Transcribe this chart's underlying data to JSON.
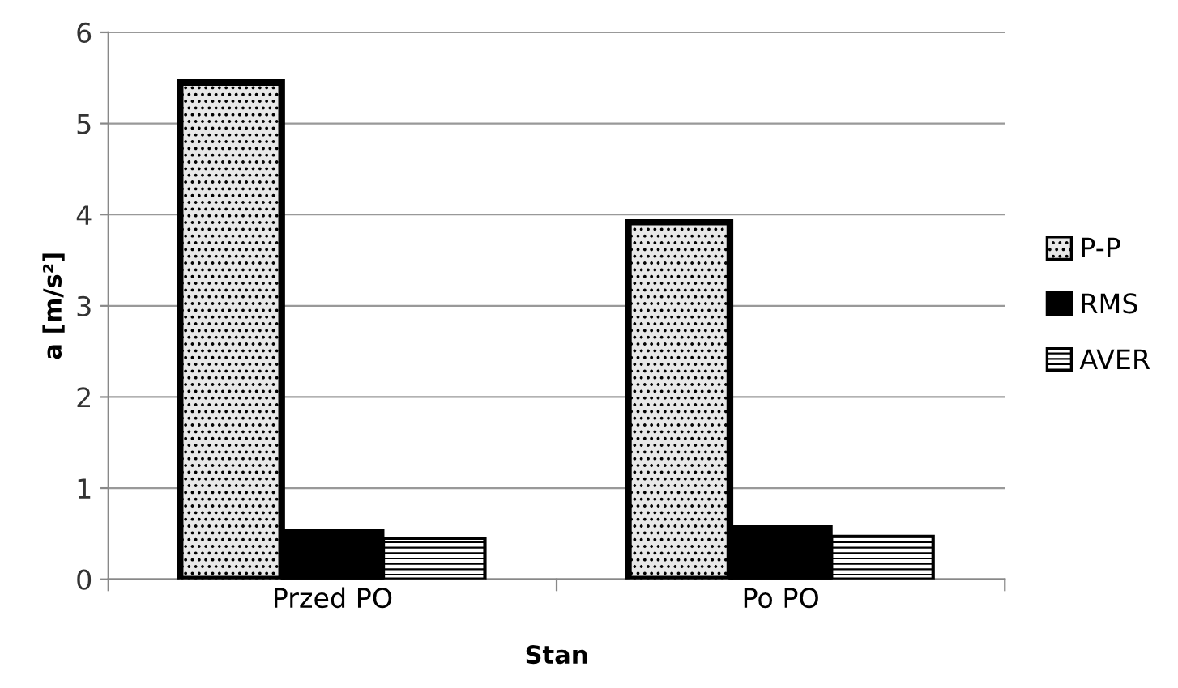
{
  "chart_data": {
    "type": "bar",
    "xlabel": "Stan",
    "ylabel": "a [m/s²]",
    "categories": [
      "Przed PO",
      "Po PO"
    ],
    "series": [
      {
        "name": "P-P",
        "color": "#e8e8e8",
        "values": [
          5.45,
          3.92
        ]
      },
      {
        "name": "RMS",
        "color": "#000000",
        "values": [
          0.54,
          0.58
        ]
      },
      {
        "name": "AVER",
        "color": "#ffffff",
        "values": [
          0.45,
          0.47
        ]
      }
    ],
    "ylim": [
      0,
      6
    ],
    "yticks": [
      0,
      1,
      2,
      3,
      4,
      5,
      6
    ],
    "grid": "y",
    "legend": "right"
  }
}
